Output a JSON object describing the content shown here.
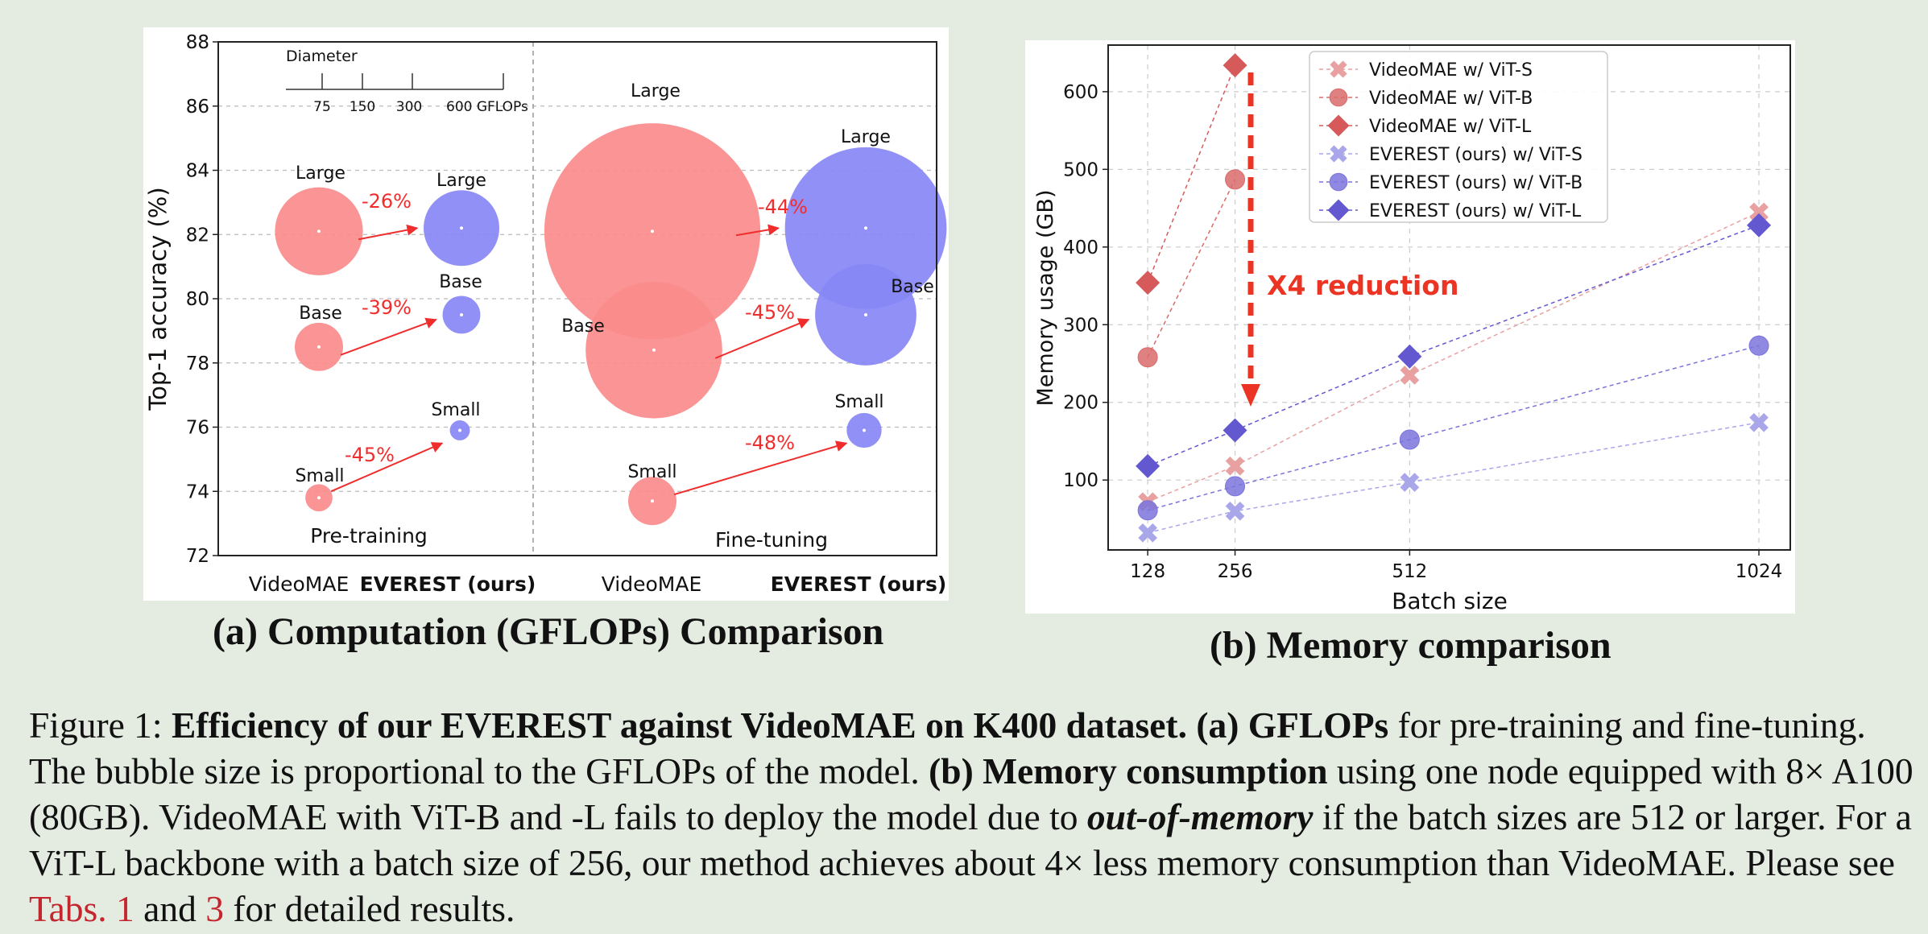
{
  "panel_a": {
    "caption": "(a) Computation (GFLOPs) Comparison",
    "ylabel": "Top-1 accuracy (%)",
    "y_ticks": [
      "88",
      "86",
      "84",
      "82",
      "80",
      "78",
      "76",
      "74",
      "72"
    ],
    "legend_title": "Diameter",
    "legend_ticks": [
      "75",
      "150",
      "300",
      "600 GFLOPs"
    ],
    "groups": [
      "Pre-training",
      "Fine-tuning"
    ],
    "x_labels": [
      "VideoMAE",
      "EVEREST (ours)",
      "VideoMAE",
      "EVEREST (ours)"
    ],
    "bubble_labels": {
      "pt_videomae": [
        "Large",
        "Base",
        "Small"
      ],
      "pt_everest": [
        "Large",
        "Base",
        "Small"
      ],
      "ft_videomae": [
        "Large",
        "Base",
        "Small"
      ],
      "ft_everest": [
        "Large",
        "Base",
        "Small"
      ]
    },
    "reductions": {
      "pretraining": [
        "-26%",
        "-39%",
        "-45%"
      ],
      "finetuning": [
        "-44%",
        "-45%",
        "-48%"
      ]
    }
  },
  "chart_data": [
    {
      "type": "scatter",
      "ylabel": "Top-1 accuracy (%)",
      "ylim": [
        72,
        88
      ],
      "series": [
        {
          "name": "VideoMAE",
          "group": "Pre-training",
          "points": [
            {
              "label": "Large",
              "y": 82.1
            },
            {
              "label": "Base",
              "y": 78.5
            },
            {
              "label": "Small",
              "y": 73.8
            }
          ]
        },
        {
          "name": "EVEREST (ours)",
          "group": "Pre-training",
          "points": [
            {
              "label": "Large",
              "y": 82.2
            },
            {
              "label": "Base",
              "y": 79.5
            },
            {
              "label": "Small",
              "y": 75.9
            }
          ]
        },
        {
          "name": "VideoMAE",
          "group": "Fine-tuning",
          "points": [
            {
              "label": "Large",
              "y": 82.1
            },
            {
              "label": "Base",
              "y": 78.4
            },
            {
              "label": "Small",
              "y": 73.7
            }
          ]
        },
        {
          "name": "EVEREST (ours)",
          "group": "Fine-tuning",
          "points": [
            {
              "label": "Large",
              "y": 82.2
            },
            {
              "label": "Base",
              "y": 79.5
            },
            {
              "label": "Small",
              "y": 75.9
            }
          ]
        }
      ],
      "bubble_gflops": {
        "pretraining": {
          "videomae": [
            597,
            180,
            57
          ],
          "everest": [
            442,
            110,
            31
          ]
        },
        "finetuning": {
          "videomae": [
            3600,
            1440,
            180
          ],
          "everest": [
            2016,
            792,
            94
          ]
        }
      }
    },
    {
      "type": "line",
      "xlabel": "Batch size",
      "ylabel": "Memory usage (GB)",
      "x": [
        128,
        256,
        512,
        1024
      ],
      "xticks": [
        "128",
        "256",
        "512",
        "1024"
      ],
      "yticks": [
        "100",
        "200",
        "300",
        "400",
        "500",
        "600"
      ],
      "ylim": [
        10,
        660
      ],
      "grid": true,
      "legend_position": "top-center",
      "annotation": "X4 reduction",
      "series": [
        {
          "name": "VideoMAE w/ ViT-S",
          "marker": "x",
          "color": "#e8a0a0",
          "values": [
            72,
            118,
            235,
            445
          ]
        },
        {
          "name": "VideoMAE w/ ViT-B",
          "marker": "o",
          "color": "#d96b6b",
          "values": [
            258,
            487,
            null,
            null
          ]
        },
        {
          "name": "VideoMAE w/ ViT-L",
          "marker": "D",
          "color": "#d65a5a",
          "values": [
            354,
            634,
            null,
            null
          ]
        },
        {
          "name": "EVEREST (ours) w/ ViT-S",
          "marker": "x",
          "color": "#a9a6ea",
          "values": [
            32,
            60,
            97,
            174
          ]
        },
        {
          "name": "EVEREST (ours) w/ ViT-B",
          "marker": "o",
          "color": "#7b74dc",
          "values": [
            61,
            92,
            152,
            273
          ]
        },
        {
          "name": "EVEREST (ours) w/ ViT-L",
          "marker": "D",
          "color": "#6358d0",
          "values": [
            118,
            164,
            259,
            428
          ]
        }
      ]
    }
  ],
  "panel_b": {
    "caption": "(b) Memory comparison"
  },
  "figure_caption": {
    "prefix": "Figure 1: ",
    "bold1": "Efficiency of our EVEREST against VideoMAE on K400 dataset.",
    "bold2": " (a) GFLOPs",
    "text1": " for pre-training and fine-tuning. The bubble size is proportional to the GFLOPs of the model. ",
    "bold3": "(b) Memory consumption",
    "text2": " using one node equipped with 8× A100 (80GB). VideoMAE with ViT-B and -L fails to deploy the model due to ",
    "bold_italic": "out-of-memory",
    "text3": " if the batch sizes are 512 or larger. For a ViT-L backbone with a batch size of 256, our method achieves about 4× less memory consumption than VideoMAE. Please see ",
    "ref1": " Tabs. 1",
    "text4": " and ",
    "ref2": "3",
    "text5": " for detailed results."
  },
  "colors": {
    "videomae": "#fb8b8b",
    "everest": "#8787f5",
    "arrow": "#f02d2d",
    "annotation": "#ec3424"
  }
}
